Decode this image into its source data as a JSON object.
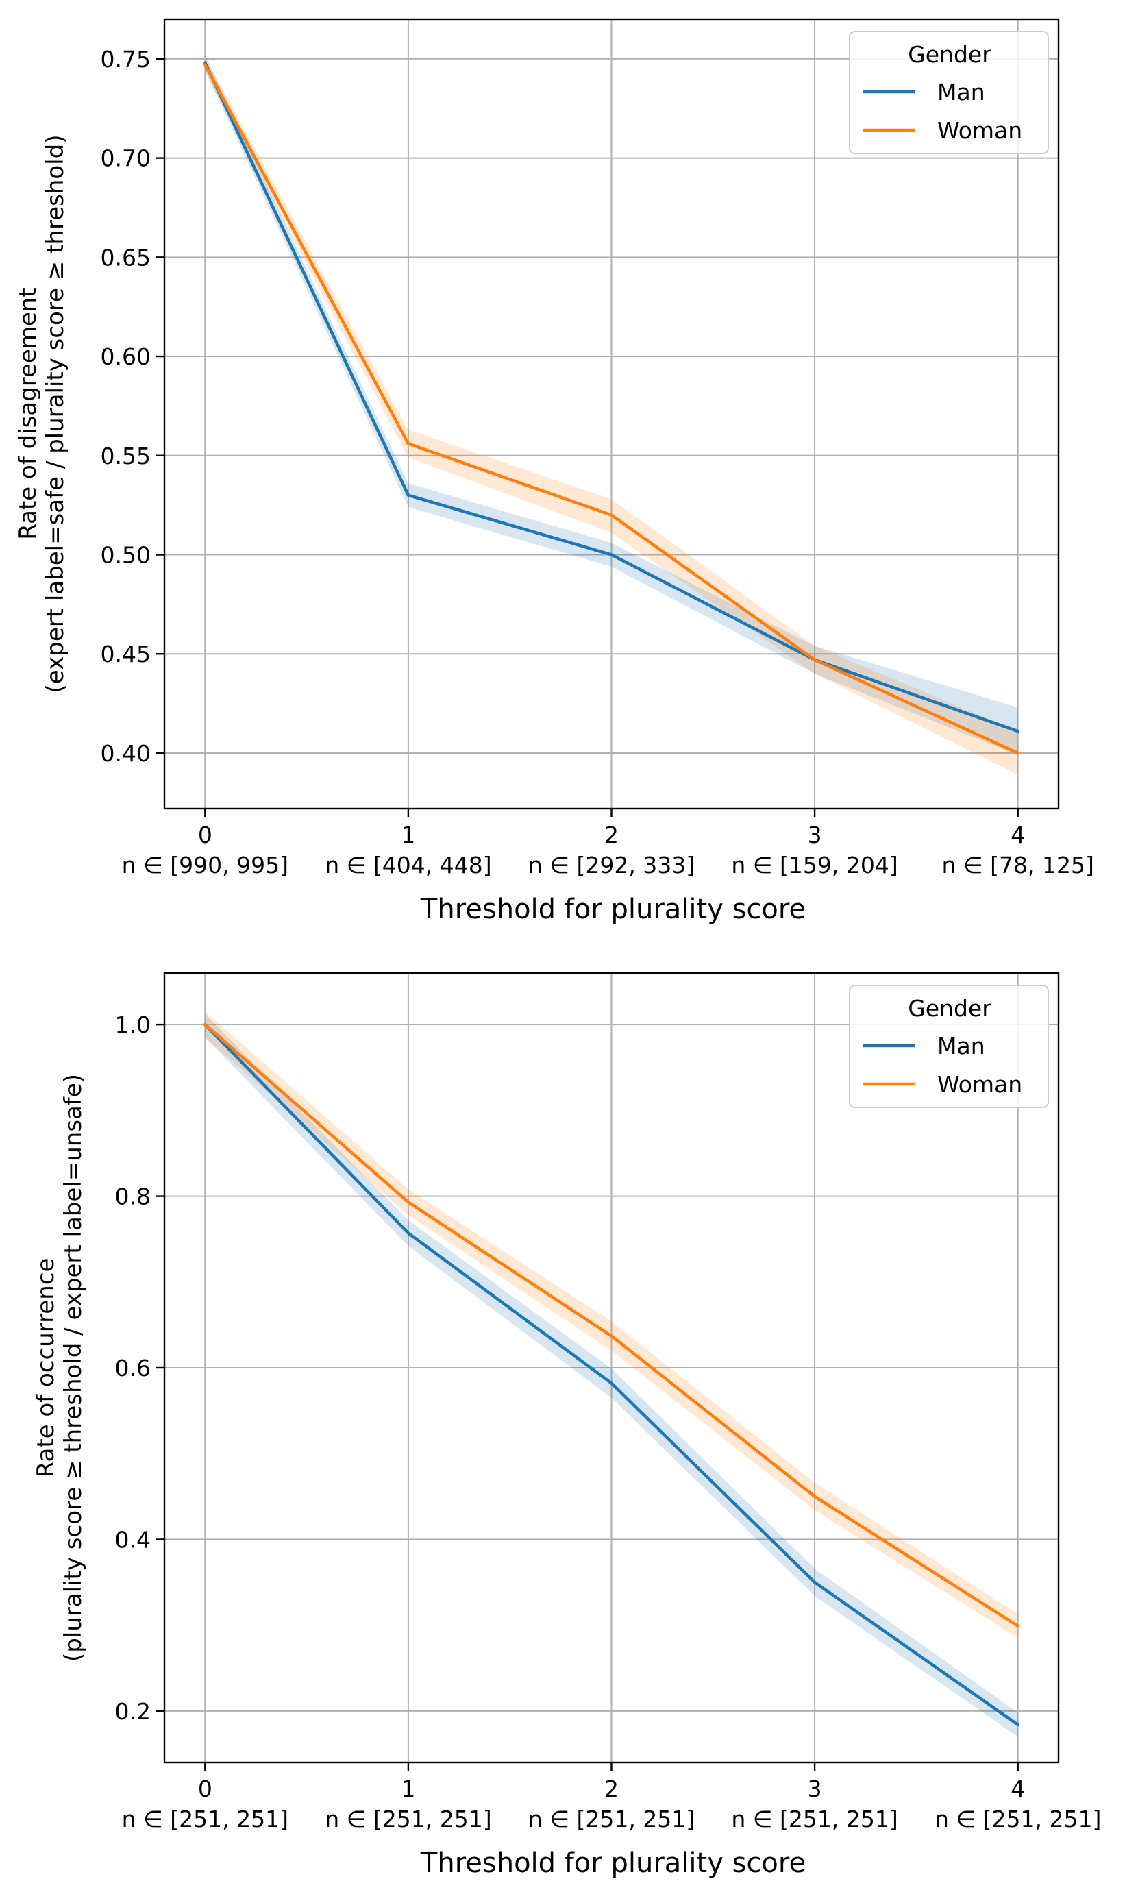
{
  "chart_data": [
    {
      "type": "line",
      "title": "",
      "xlabel": "Threshold for plurality score",
      "ylabel": "Rate of disagreement",
      "ylabel_line2": "(expert label=safe / plurality score ≥ threshold)",
      "x": [
        0,
        1,
        2,
        3,
        4
      ],
      "x_tick_labels": [
        "0",
        "1",
        "2",
        "3",
        "4"
      ],
      "n_labels": [
        "n ∈ [990, 995]",
        "n ∈ [404, 448]",
        "n ∈ [292, 333]",
        "n ∈ [159, 204]",
        "n ∈ [78, 125]"
      ],
      "xlim": [
        -0.2,
        4.2
      ],
      "ylim": [
        0.372,
        0.77
      ],
      "yticks": [
        0.4,
        0.45,
        0.5,
        0.55,
        0.6,
        0.65,
        0.7,
        0.75
      ],
      "ytick_labels": [
        "0.40",
        "0.45",
        "0.50",
        "0.55",
        "0.60",
        "0.65",
        "0.70",
        "0.75"
      ],
      "grid": true,
      "legend": {
        "title": "Gender",
        "position": "top-right"
      },
      "series": [
        {
          "name": "Man",
          "color": "#1f77b4",
          "values": [
            0.748,
            0.53,
            0.5,
            0.447,
            0.411
          ],
          "ci_low": [
            0.744,
            0.524,
            0.494,
            0.44,
            0.399
          ],
          "ci_high": [
            0.752,
            0.536,
            0.506,
            0.454,
            0.423
          ]
        },
        {
          "name": "Woman",
          "color": "#ff7f0e",
          "values": [
            0.747,
            0.556,
            0.52,
            0.447,
            0.4
          ],
          "ci_low": [
            0.743,
            0.549,
            0.511,
            0.44,
            0.389
          ],
          "ci_high": [
            0.751,
            0.563,
            0.528,
            0.454,
            0.411
          ]
        }
      ]
    },
    {
      "type": "line",
      "title": "",
      "xlabel": "Threshold for plurality score",
      "ylabel": "Rate of occurrence",
      "ylabel_line2": "(plurality score ≥ threshold / expert label=unsafe)",
      "x": [
        0,
        1,
        2,
        3,
        4
      ],
      "x_tick_labels": [
        "0",
        "1",
        "2",
        "3",
        "4"
      ],
      "n_labels": [
        "n ∈ [251, 251]",
        "n ∈ [251, 251]",
        "n ∈ [251, 251]",
        "n ∈ [251, 251]",
        "n ∈ [251, 251]"
      ],
      "xlim": [
        -0.2,
        4.2
      ],
      "ylim": [
        0.14,
        1.06
      ],
      "yticks": [
        0.2,
        0.4,
        0.6,
        0.8,
        1.0
      ],
      "ytick_labels": [
        "0.2",
        "0.4",
        "0.6",
        "0.8",
        "1.0"
      ],
      "grid": true,
      "legend": {
        "title": "Gender",
        "position": "top-right"
      },
      "series": [
        {
          "name": "Man",
          "color": "#1f77b4",
          "values": [
            1.0,
            0.757,
            0.582,
            0.35,
            0.184
          ],
          "ci_low": [
            0.985,
            0.742,
            0.565,
            0.334,
            0.17
          ],
          "ci_high": [
            1.012,
            0.772,
            0.599,
            0.366,
            0.198
          ]
        },
        {
          "name": "Woman",
          "color": "#ff7f0e",
          "values": [
            1.0,
            0.793,
            0.637,
            0.45,
            0.299
          ],
          "ci_low": [
            0.985,
            0.778,
            0.62,
            0.434,
            0.285
          ],
          "ci_high": [
            1.015,
            0.808,
            0.654,
            0.466,
            0.313
          ]
        }
      ]
    }
  ]
}
